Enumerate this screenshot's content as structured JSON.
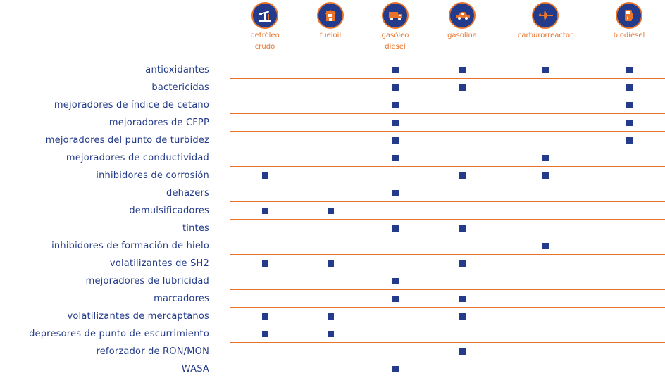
{
  "columns": [
    {
      "icon": "oil-pump-icon",
      "label_lines": [
        "petróleo",
        "crudo"
      ]
    },
    {
      "icon": "house-icon",
      "label_lines": [
        "fueloil"
      ]
    },
    {
      "icon": "truck-icon",
      "label_lines": [
        "gasóleo",
        "diesel"
      ]
    },
    {
      "icon": "car-icon",
      "label_lines": [
        "gasolina"
      ]
    },
    {
      "icon": "airplane-icon",
      "label_lines": [
        "carburorreactor"
      ]
    },
    {
      "icon": "fuel-pump-icon",
      "label_lines": [
        "biodiésel"
      ]
    }
  ],
  "rows": [
    {
      "label": "antioxidantes",
      "marks": [
        false,
        false,
        true,
        true,
        true,
        true
      ]
    },
    {
      "label": "bactericidas",
      "marks": [
        false,
        false,
        true,
        true,
        false,
        true
      ]
    },
    {
      "label": "mejoradores de índice de cetano",
      "marks": [
        false,
        false,
        true,
        false,
        false,
        true
      ]
    },
    {
      "label": "mejoradores de CFPP",
      "marks": [
        false,
        false,
        true,
        false,
        false,
        true
      ]
    },
    {
      "label": "mejoradores del punto de turbidez",
      "marks": [
        false,
        false,
        true,
        false,
        false,
        true
      ]
    },
    {
      "label": "mejoradores de conductividad",
      "marks": [
        false,
        false,
        true,
        false,
        true,
        false
      ]
    },
    {
      "label": "inhibidores de corrosión",
      "marks": [
        true,
        false,
        false,
        true,
        true,
        false
      ]
    },
    {
      "label": "dehazers",
      "marks": [
        false,
        false,
        true,
        false,
        false,
        false
      ]
    },
    {
      "label": "demulsificadores",
      "marks": [
        true,
        true,
        false,
        false,
        false,
        false
      ]
    },
    {
      "label": "tintes",
      "marks": [
        false,
        false,
        true,
        true,
        false,
        false
      ]
    },
    {
      "label": "inhibidores de formación de hielo",
      "marks": [
        false,
        false,
        false,
        false,
        true,
        false
      ]
    },
    {
      "label": "volatilizantes de SH2",
      "marks": [
        true,
        true,
        false,
        true,
        false,
        false
      ]
    },
    {
      "label": "mejoradores de lubricidad",
      "marks": [
        false,
        false,
        true,
        false,
        false,
        false
      ]
    },
    {
      "label": "marcadores",
      "marks": [
        false,
        false,
        true,
        true,
        false,
        false
      ]
    },
    {
      "label": "volatilizantes de mercaptanos",
      "marks": [
        true,
        true,
        false,
        true,
        false,
        false
      ]
    },
    {
      "label": "depresores de punto de escurrimiento",
      "marks": [
        true,
        true,
        false,
        false,
        false,
        false
      ]
    },
    {
      "label": "reforzador de RON/MON",
      "marks": [
        false,
        false,
        false,
        true,
        false,
        false
      ]
    },
    {
      "label": "WASA",
      "marks": [
        false,
        false,
        true,
        false,
        false,
        false
      ]
    }
  ],
  "colors": {
    "accent": "#e8742c",
    "primary": "#233b8a"
  }
}
